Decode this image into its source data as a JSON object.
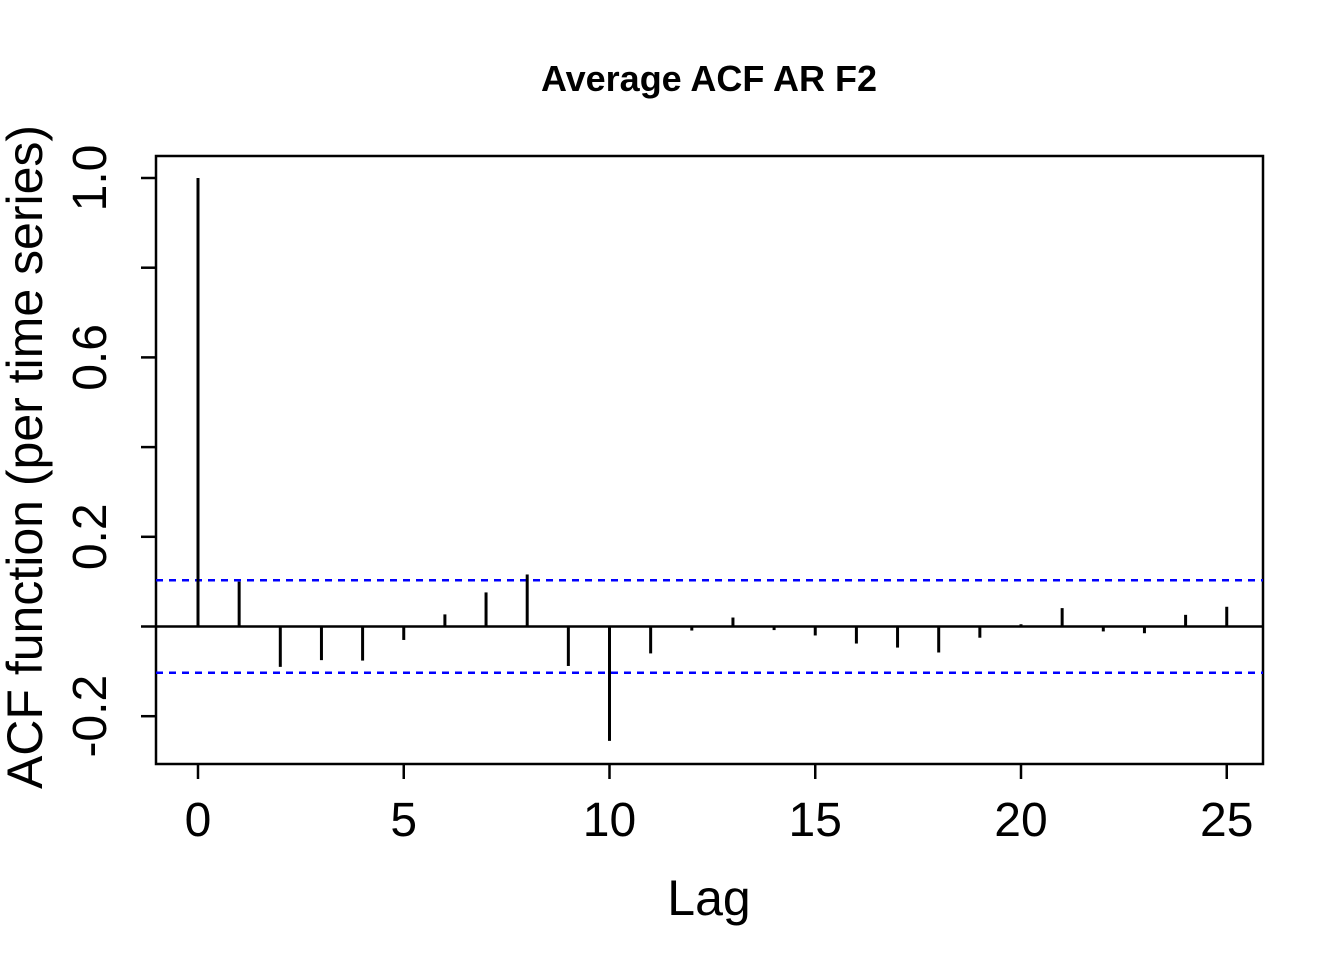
{
  "title": "Average ACF AR F2",
  "chart_data": {
    "type": "bar",
    "title": "Average ACF AR F2",
    "xlabel": "Lag",
    "ylabel": "ACF function (per time series)",
    "x": [
      0,
      1,
      2,
      3,
      4,
      5,
      6,
      7,
      8,
      9,
      10,
      11,
      12,
      13,
      14,
      15,
      16,
      17,
      18,
      19,
      20,
      21,
      22,
      23,
      24,
      25
    ],
    "values": [
      1.0,
      0.1,
      -0.09,
      -0.075,
      -0.076,
      -0.03,
      0.027,
      0.076,
      0.116,
      -0.088,
      -0.255,
      -0.06,
      -0.009,
      0.02,
      -0.008,
      -0.02,
      -0.038,
      -0.047,
      -0.058,
      -0.025,
      0.005,
      0.041,
      -0.011,
      -0.015,
      0.026,
      0.044
    ],
    "confidence_bound": 0.103,
    "confidence_line_style": "dashed",
    "xlim": [
      -1.0,
      25.9
    ],
    "ylim": [
      -0.31,
      1.05
    ],
    "grid": false,
    "legend": null,
    "x_ticks": [
      {
        "value": 0,
        "label": "0"
      },
      {
        "value": 5,
        "label": "5"
      },
      {
        "value": 10,
        "label": "10"
      },
      {
        "value": 15,
        "label": "15"
      },
      {
        "value": 20,
        "label": "20"
      },
      {
        "value": 25,
        "label": "25"
      }
    ],
    "y_ticks_all": [
      -0.2,
      0,
      0.2,
      0.4,
      0.6,
      0.8,
      1.0
    ],
    "y_tick_labels": [
      {
        "value": 1.0,
        "label": "1.0"
      },
      {
        "value": 0.6,
        "label": "0.6"
      },
      {
        "value": 0.2,
        "label": "0.2"
      },
      {
        "value": -0.2,
        "label": "-0.2"
      }
    ],
    "colors": {
      "bar": "#000000",
      "axis": "#000000",
      "confidence": "#0000ff",
      "text": "#000000",
      "background": "#ffffff"
    }
  }
}
